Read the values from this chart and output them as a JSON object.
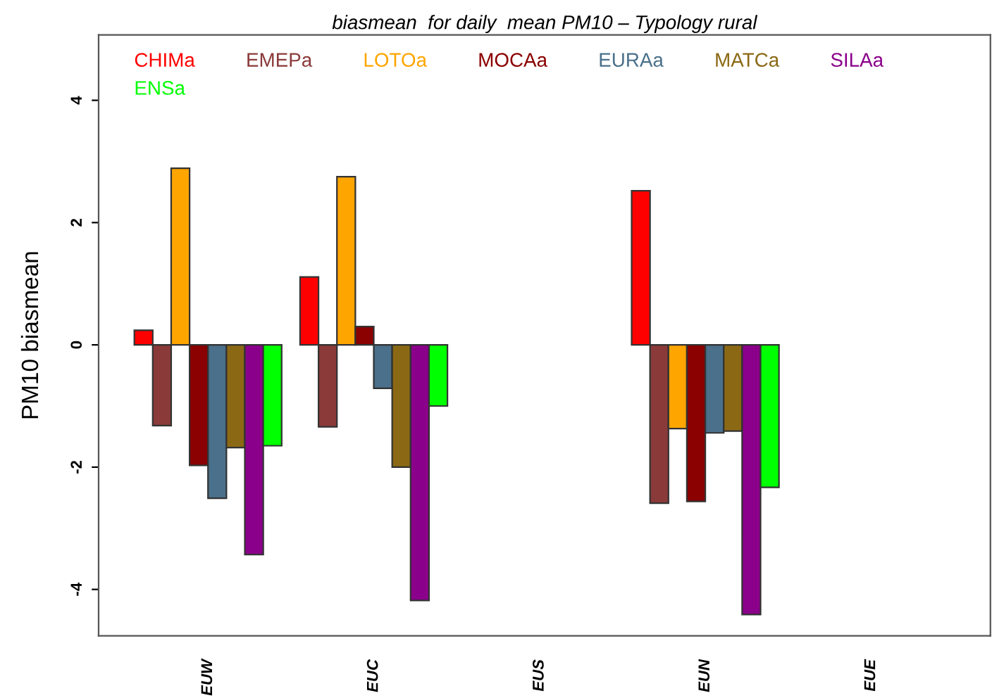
{
  "chart_data": {
    "type": "bar",
    "title": "biasmean  for daily  mean PM10 – Typology rural",
    "ylabel": "PM10 biasmean",
    "categories": [
      "EUW",
      "EUC",
      "EUS",
      "EUN",
      "EUE"
    ],
    "series": [
      {
        "name": "CHIMa",
        "color": "#ff0000",
        "values": [
          0.24,
          1.11,
          null,
          2.52,
          null
        ]
      },
      {
        "name": "EMEPa",
        "color": "#8b3a3a",
        "values": [
          -1.32,
          -1.34,
          null,
          -2.59,
          null
        ]
      },
      {
        "name": "LOTOa",
        "color": "#ffa500",
        "values": [
          2.89,
          2.75,
          null,
          -1.37,
          null
        ]
      },
      {
        "name": "MOCAa",
        "color": "#8b0000",
        "values": [
          -1.97,
          0.3,
          null,
          -2.56,
          null
        ]
      },
      {
        "name": "EURAa",
        "color": "#4a708b",
        "values": [
          -2.51,
          -0.71,
          null,
          -1.44,
          null
        ]
      },
      {
        "name": "MATCa",
        "color": "#8b6914",
        "values": [
          -1.68,
          -2.0,
          null,
          -1.41,
          null
        ]
      },
      {
        "name": "SILAa",
        "color": "#8b008b",
        "values": [
          -3.43,
          -4.18,
          null,
          -4.41,
          null
        ]
      },
      {
        "name": "ENSa",
        "color": "#00ff00",
        "values": [
          -1.65,
          -1.0,
          null,
          -2.33,
          null
        ]
      }
    ],
    "ylim": [
      -4.76,
      5.07
    ],
    "yticks": [
      -4,
      -2,
      0,
      2,
      4
    ],
    "grid": false,
    "legend": "top"
  }
}
